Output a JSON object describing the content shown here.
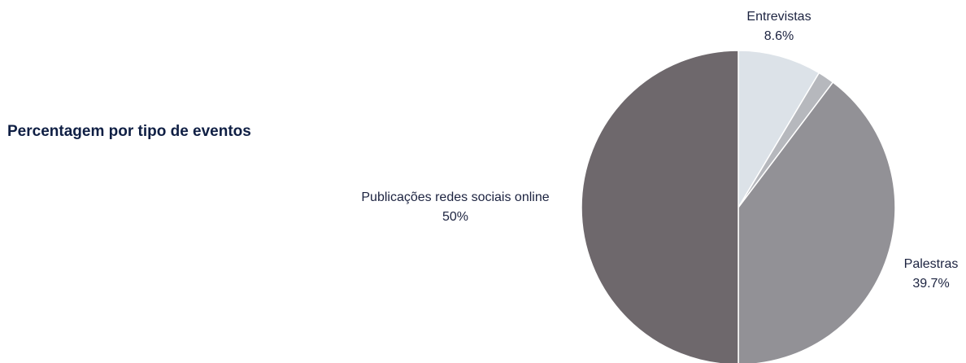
{
  "chart_data": {
    "type": "pie",
    "title": "Percentagem por tipo de eventos",
    "slices": [
      {
        "label": "Entrevistas",
        "value": 8.6,
        "value_label": "8.6%",
        "color": "#dce2e8"
      },
      {
        "label": "",
        "value": 1.7,
        "value_label": "",
        "color": "#b6b8bd"
      },
      {
        "label": "Palestras",
        "value": 39.7,
        "value_label": "39.7%",
        "color": "#929196"
      },
      {
        "label": "Publicações redes sociais online",
        "value": 50,
        "value_label": "50%",
        "color": "#6e686c"
      }
    ],
    "start_angle": "12 o'clock",
    "direction": "clockwise",
    "legend": "none (labels placed outside slices)"
  }
}
